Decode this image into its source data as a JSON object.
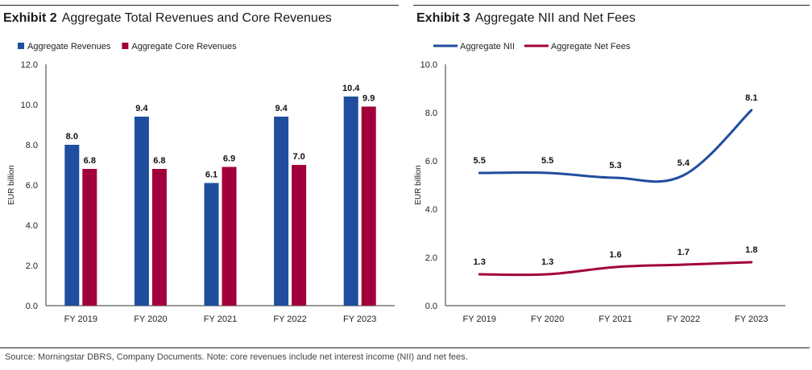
{
  "exhibit2": {
    "number": "Exhibit 2",
    "title": "Aggregate Total Revenues and Core Revenues"
  },
  "exhibit3": {
    "number": "Exhibit 3",
    "title": "Aggregate NII and Net Fees"
  },
  "source": "Source: Morningstar DBRS, Company Documents. Note: core revenues include net interest income (NII) and net fees.",
  "chart_data": [
    {
      "type": "bar",
      "title": "Aggregate Total Revenues and Core Revenues",
      "categories": [
        "FY 2019",
        "FY 2020",
        "FY 2021",
        "FY 2022",
        "FY 2023"
      ],
      "series": [
        {
          "name": "Aggregate Revenues",
          "values": [
            8.0,
            9.4,
            6.1,
            9.4,
            10.4
          ],
          "labels": [
            "8.0",
            "9.4",
            "6.1",
            "9.4",
            "10.4"
          ],
          "color": "#1f4e9e"
        },
        {
          "name": "Aggregate Core Revenues",
          "values": [
            6.8,
            6.8,
            6.9,
            7.0,
            9.9
          ],
          "labels": [
            "6.8",
            "6.8",
            "6.9",
            "7.0",
            "9.9"
          ],
          "color": "#a1003c"
        }
      ],
      "ylabel": "EUR billion",
      "ylim": [
        0,
        12
      ],
      "yticks": [
        "0.0",
        "2.0",
        "4.0",
        "6.0",
        "8.0",
        "10.0",
        "12.0"
      ],
      "grid": false,
      "legend": "top-left"
    },
    {
      "type": "line",
      "title": "Aggregate NII and Net Fees",
      "categories": [
        "FY 2019",
        "FY 2020",
        "FY 2021",
        "FY 2022",
        "FY 2023"
      ],
      "series": [
        {
          "name": "Aggregate NII",
          "values": [
            5.5,
            5.5,
            5.3,
            5.4,
            8.1
          ],
          "labels": [
            "5.5",
            "5.5",
            "5.3",
            "5.4",
            "8.1"
          ],
          "color": "#1f4e9e"
        },
        {
          "name": "Aggregate Net Fees",
          "values": [
            1.3,
            1.3,
            1.6,
            1.7,
            1.8
          ],
          "labels": [
            "1.3",
            "1.3",
            "1.6",
            "1.7",
            "1.8"
          ],
          "color": "#a1003c"
        }
      ],
      "ylabel": "EUR billion",
      "ylim": [
        0,
        10
      ],
      "yticks": [
        "0.0",
        "2.0",
        "4.0",
        "6.0",
        "8.0",
        "10.0"
      ],
      "grid": false,
      "legend": "top-left"
    }
  ]
}
